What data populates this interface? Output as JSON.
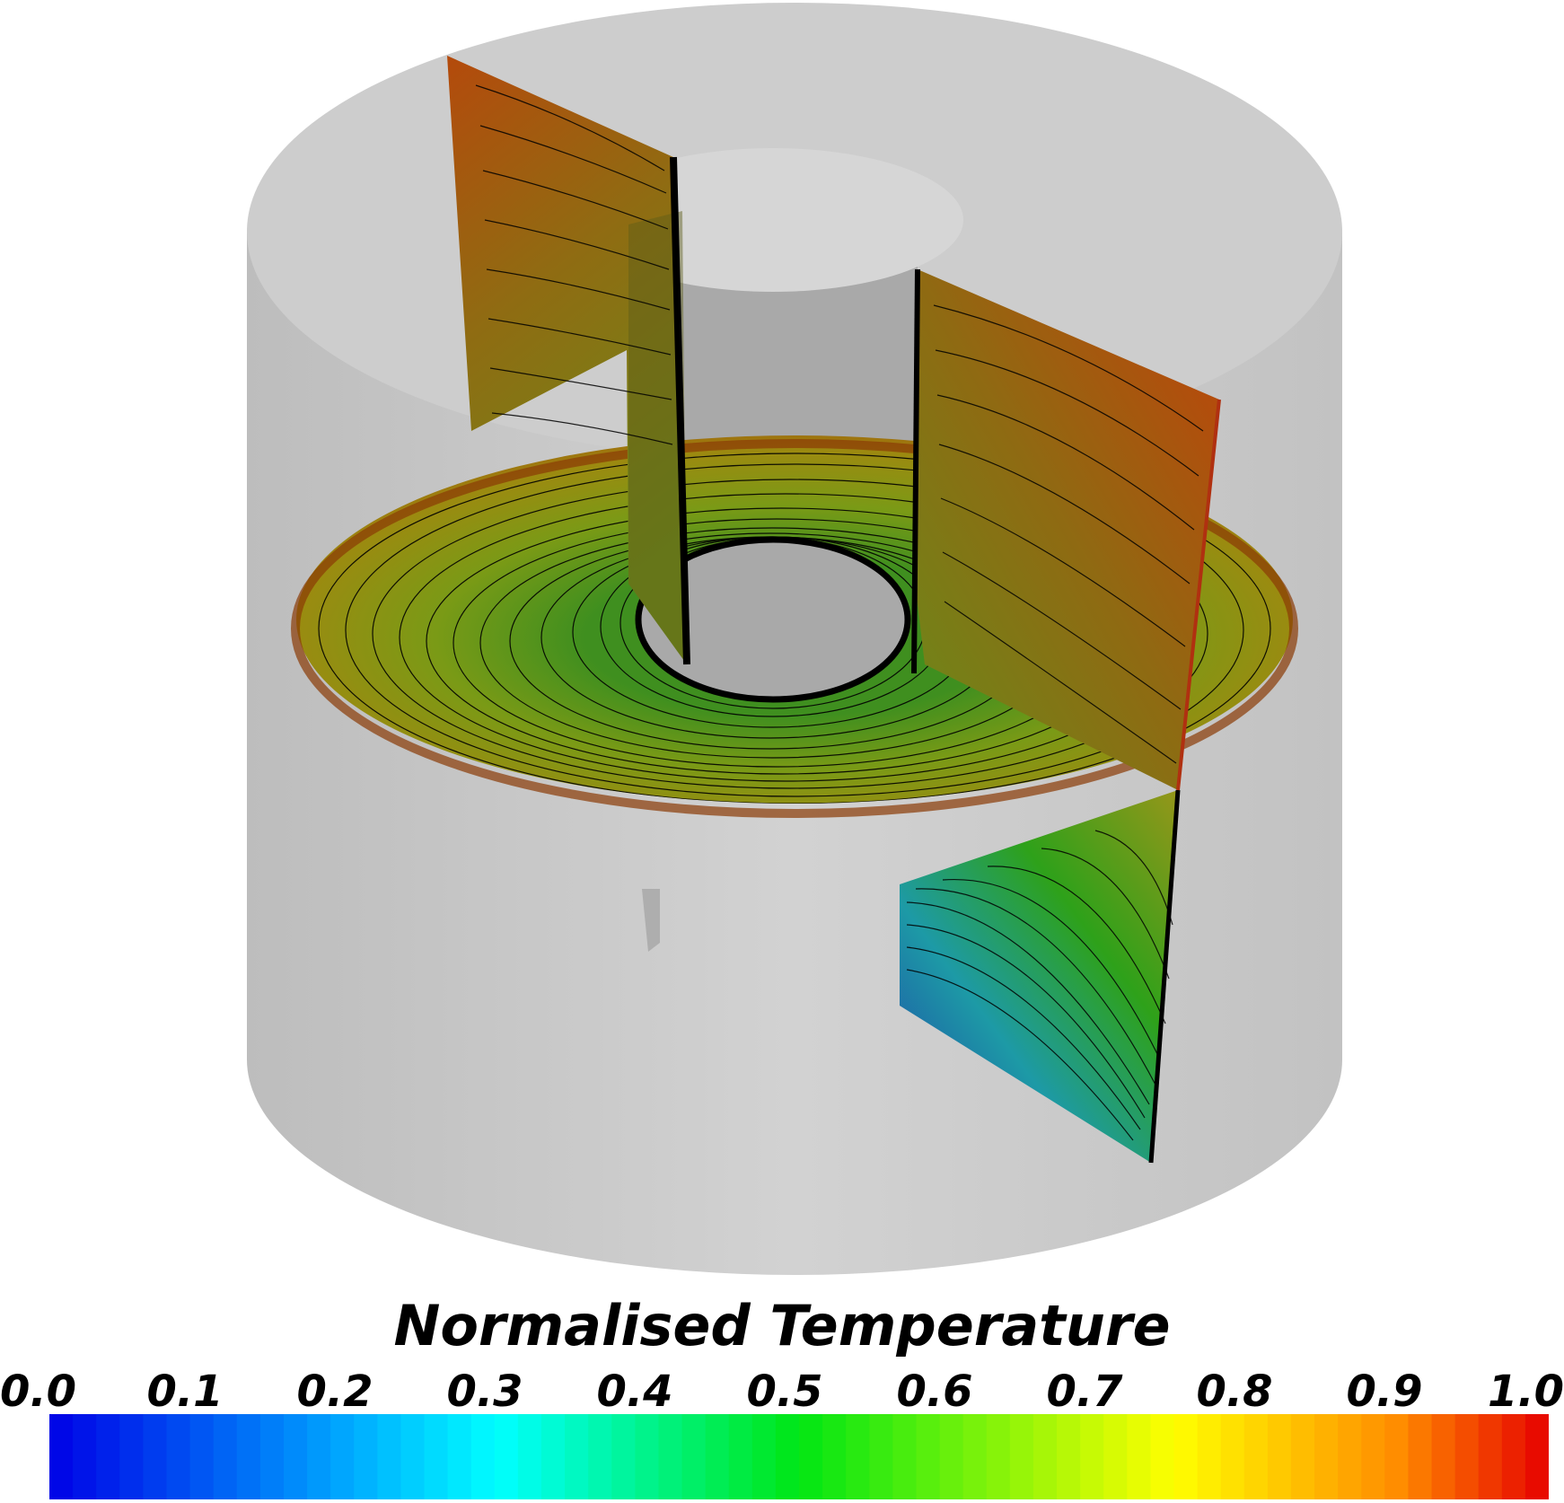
{
  "colorbar": {
    "title": "Normalised Temperature",
    "ticks": [
      "0.0",
      "0.1",
      "0.2",
      "0.3",
      "0.4",
      "0.5",
      "0.6",
      "0.7",
      "0.8",
      "0.9",
      "1.0"
    ],
    "range": [
      0.0,
      1.0
    ],
    "steps": 64
  },
  "colors": {
    "cylinder": "#c8c8c8",
    "cylinder_top": "#cfcfcf",
    "inner_core": "#a8a8a8",
    "contour_line": "#000000",
    "background": "#ffffff"
  }
}
